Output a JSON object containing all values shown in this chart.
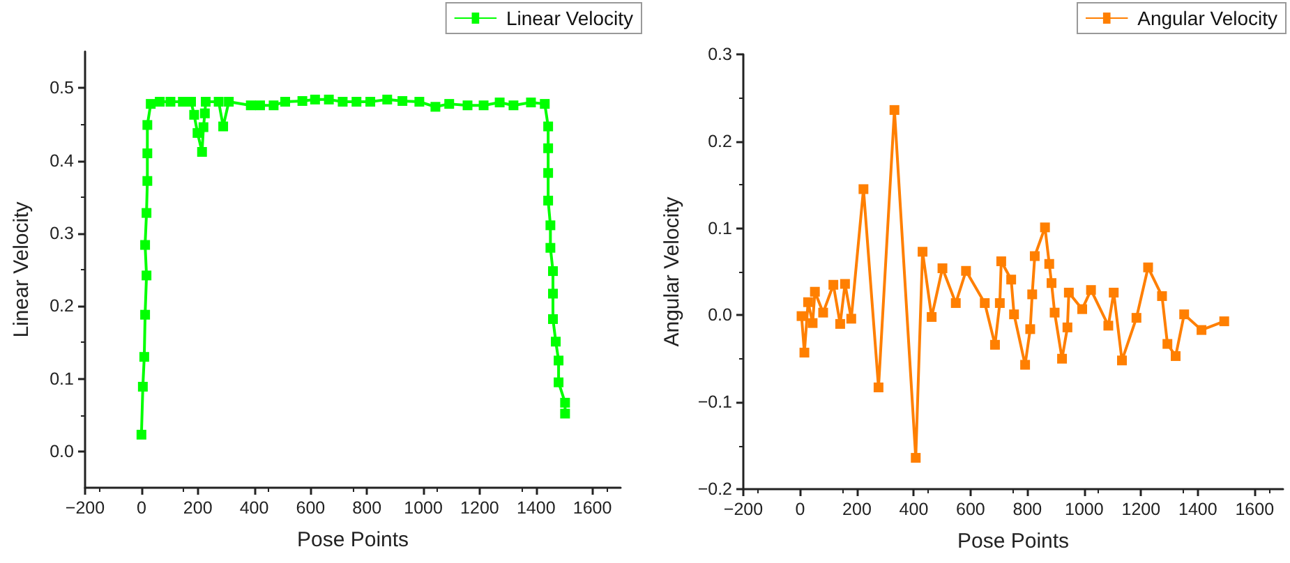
{
  "chart_data": [
    {
      "type": "line",
      "xlabel": "Pose Points",
      "ylabel": "Linear Velocity",
      "legend": "top right",
      "marker": "square",
      "line_style": "solid",
      "grid": false,
      "xlim": [
        -200,
        1700
      ],
      "xticks": [
        {
          "value": -200,
          "label": "−200"
        },
        0,
        200,
        400,
        600,
        800,
        1000,
        1200,
        1400,
        1600
      ],
      "ylim": [
        -0.05,
        0.55
      ],
      "yticks": [
        {
          "value": 0,
          "label": "0.0"
        },
        0.1,
        0.2,
        0.3,
        0.4,
        0.5
      ],
      "series": [
        {
          "name": "Linear Velocity",
          "color": "#00ff00",
          "x": [
            0,
            5,
            10,
            13,
            18,
            13,
            18,
            21,
            21,
            21,
            33,
            65,
            103,
            147,
            176,
            187,
            199,
            215,
            220,
            225,
            228,
            274,
            290,
            310,
            388,
            421,
            469,
            510,
            571,
            616,
            665,
            714,
            763,
            812,
            872,
            926,
            986,
            1043,
            1092,
            1157,
            1214,
            1271,
            1320,
            1382,
            1431,
            1443,
            1443,
            1443,
            1443,
            1451,
            1451,
            1460,
            1460,
            1460,
            1470,
            1480,
            1480,
            1503,
            1503
          ],
          "values": [
            0.023,
            0.089,
            0.13,
            0.188,
            0.242,
            0.284,
            0.328,
            0.372,
            0.41,
            0.449,
            0.478,
            0.481,
            0.481,
            0.481,
            0.481,
            0.463,
            0.438,
            0.412,
            0.446,
            0.465,
            0.481,
            0.481,
            0.447,
            0.481,
            0.476,
            0.476,
            0.476,
            0.481,
            0.482,
            0.484,
            0.484,
            0.481,
            0.481,
            0.481,
            0.484,
            0.482,
            0.481,
            0.474,
            0.478,
            0.476,
            0.476,
            0.48,
            0.476,
            0.48,
            0.478,
            0.447,
            0.417,
            0.383,
            0.345,
            0.311,
            0.28,
            0.248,
            0.217,
            0.182,
            0.151,
            0.125,
            0.095,
            0.067,
            0.052
          ]
        }
      ]
    },
    {
      "type": "line",
      "xlabel": "Pose Points",
      "ylabel": "Angular Velocity",
      "legend": "top right",
      "marker": "square",
      "line_style": "solid",
      "grid": false,
      "xlim": [
        -200,
        1700
      ],
      "xticks": [
        {
          "value": -200,
          "label": "−200"
        },
        0,
        200,
        400,
        600,
        800,
        1000,
        1200,
        1400,
        1600
      ],
      "ylim": [
        -0.2,
        0.3
      ],
      "yticks": [
        {
          "value": -0.2,
          "label": "−0.2"
        },
        {
          "value": -0.1,
          "label": "−0.1"
        },
        {
          "value": 0,
          "label": "0.0"
        },
        0.1,
        0.2,
        0.3
      ],
      "series": [
        {
          "name": "Angular Velocity",
          "color": "#ff7f00",
          "x": [
            5,
            15,
            28,
            44,
            52,
            81,
            117,
            141,
            158,
            180,
            223,
            276,
            332,
            407,
            431,
            463,
            501,
            548,
            584,
            650,
            686,
            703,
            708,
            743,
            753,
            792,
            810,
            817,
            826,
            862,
            877,
            885,
            896,
            922,
            941,
            946,
            993,
            1024,
            1085,
            1104,
            1133,
            1184,
            1225,
            1274,
            1293,
            1322,
            1352,
            1413,
            1493
          ],
          "values": [
            -0.001,
            -0.043,
            0.015,
            -0.009,
            0.027,
            0.003,
            0.035,
            -0.01,
            0.036,
            -0.004,
            0.145,
            -0.083,
            0.236,
            -0.164,
            0.073,
            -0.002,
            0.054,
            0.014,
            0.051,
            0.014,
            -0.034,
            0.014,
            0.062,
            0.041,
            0.001,
            -0.057,
            -0.016,
            0.024,
            0.068,
            0.101,
            0.059,
            0.037,
            0.003,
            -0.05,
            -0.014,
            0.026,
            0.007,
            0.029,
            -0.012,
            0.026,
            -0.052,
            -0.003,
            0.055,
            0.022,
            -0.033,
            -0.047,
            0.001,
            -0.017,
            -0.007
          ]
        }
      ]
    }
  ]
}
